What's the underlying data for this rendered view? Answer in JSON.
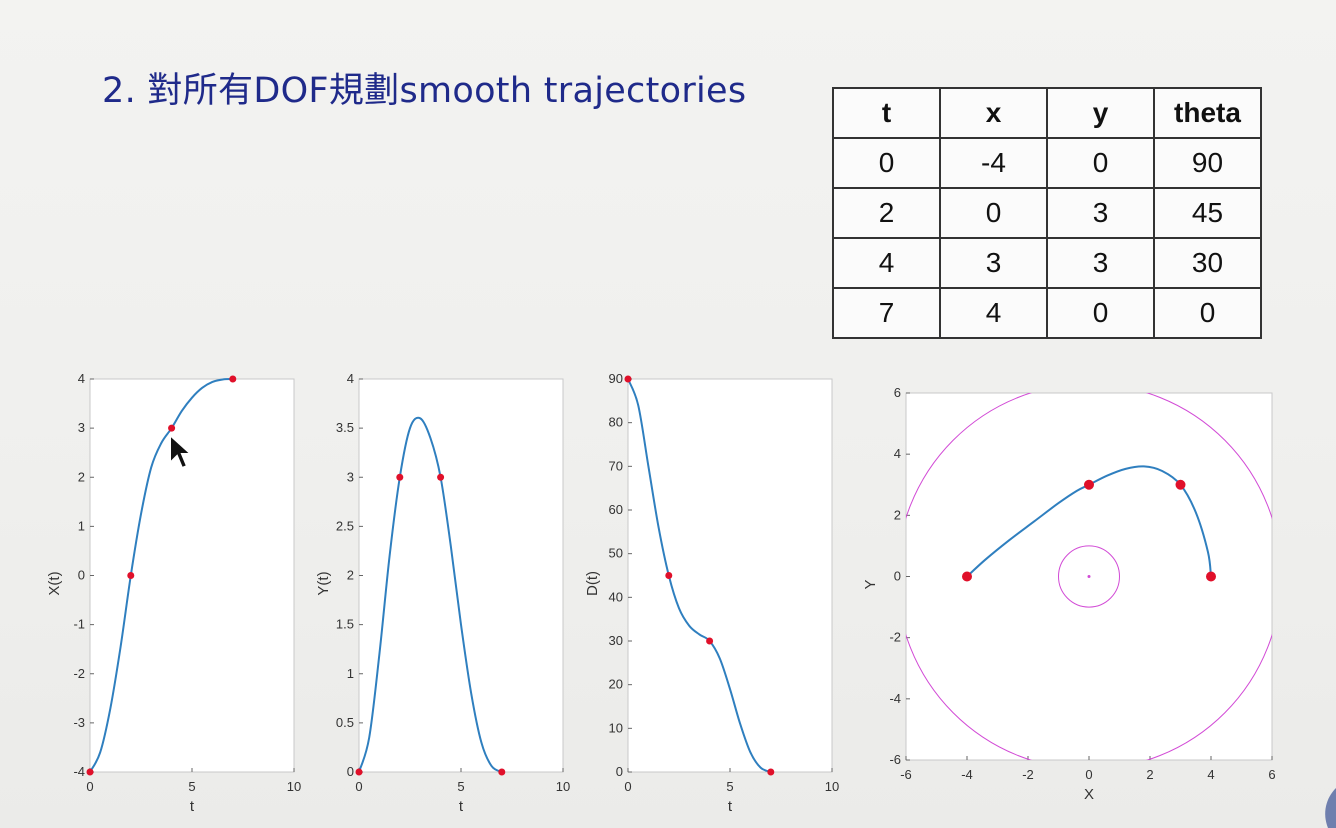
{
  "slide": {
    "title": "2. 對所有DOF規劃smooth trajectories"
  },
  "table": {
    "headers": [
      "t",
      "x",
      "y",
      "theta"
    ],
    "rows": [
      [
        "0",
        "-4",
        "0",
        "90"
      ],
      [
        "2",
        "0",
        "3",
        "45"
      ],
      [
        "4",
        "3",
        "3",
        "30"
      ],
      [
        "7",
        "4",
        "0",
        "0"
      ]
    ]
  },
  "colors": {
    "curve": "#2f7fbf",
    "marker": "#e0102a",
    "circle": "#d24bd6",
    "title": "#1f2a8a"
  },
  "icons": {
    "cursor": "mouse-pointer-icon"
  },
  "chart_data": [
    {
      "type": "line",
      "xlabel": "t",
      "ylabel": "X(t)",
      "xlim": [
        0,
        10
      ],
      "ylim": [
        -4,
        4
      ],
      "xticks": [
        0,
        5,
        10
      ],
      "yticks": [
        -4,
        -3,
        -2,
        -1,
        0,
        1,
        2,
        3,
        4
      ],
      "grid": false,
      "curve": {
        "x": [
          0,
          0.5,
          1,
          1.5,
          2,
          2.5,
          3,
          3.5,
          4,
          4.5,
          5,
          5.5,
          6,
          6.5,
          7
        ],
        "y": [
          -4,
          -3.6,
          -2.7,
          -1.45,
          0,
          1.25,
          2.2,
          2.7,
          3,
          3.35,
          3.62,
          3.82,
          3.94,
          3.99,
          4
        ]
      },
      "points": {
        "x": [
          0,
          2,
          4,
          7
        ],
        "y": [
          -4,
          0,
          3,
          4
        ]
      }
    },
    {
      "type": "line",
      "xlabel": "t",
      "ylabel": "Y(t)",
      "xlim": [
        0,
        10
      ],
      "ylim": [
        0,
        4
      ],
      "xticks": [
        0,
        5,
        10
      ],
      "yticks": [
        0,
        0.5,
        1,
        1.5,
        2,
        2.5,
        3,
        3.5,
        4
      ],
      "grid": false,
      "curve": {
        "x": [
          0,
          0.5,
          1,
          1.5,
          2,
          2.5,
          3,
          3.5,
          4,
          4.5,
          5,
          5.5,
          6,
          6.5,
          7
        ],
        "y": [
          0,
          0.35,
          1.2,
          2.2,
          3,
          3.5,
          3.6,
          3.4,
          3,
          2.3,
          1.5,
          0.8,
          0.3,
          0.06,
          0
        ]
      },
      "points": {
        "x": [
          0,
          2,
          4,
          7
        ],
        "y": [
          0,
          3,
          3,
          0
        ]
      }
    },
    {
      "type": "line",
      "xlabel": "t",
      "ylabel": "D(t)",
      "xlim": [
        0,
        10
      ],
      "ylim": [
        0,
        90
      ],
      "xticks": [
        0,
        5,
        10
      ],
      "yticks": [
        0,
        10,
        20,
        30,
        40,
        50,
        60,
        70,
        80,
        90
      ],
      "grid": false,
      "curve": {
        "x": [
          0,
          0.5,
          1,
          1.5,
          2,
          2.5,
          3,
          3.5,
          4,
          4.5,
          5,
          5.5,
          6,
          6.5,
          7
        ],
        "y": [
          90,
          84,
          70,
          56,
          45,
          37.5,
          33.5,
          31.5,
          30,
          26,
          19,
          11,
          4.5,
          1,
          0
        ]
      },
      "points": {
        "x": [
          0,
          2,
          4,
          7
        ],
        "y": [
          90,
          45,
          30,
          0
        ]
      }
    },
    {
      "type": "line",
      "xlabel": "X",
      "ylabel": "Y",
      "xlim": [
        -6,
        6
      ],
      "ylim": [
        -6,
        6
      ],
      "xticks": [
        -6,
        -4,
        -2,
        0,
        2,
        4,
        6
      ],
      "yticks": [
        -6,
        -4,
        -2,
        0,
        2,
        4,
        6
      ],
      "grid": false,
      "curve": {
        "x": [
          -4,
          -3.4,
          -2.6,
          -1.8,
          -1,
          -0.4,
          0,
          0.6,
          1.2,
          1.8,
          2.4,
          3,
          3.5,
          3.9,
          4
        ],
        "y": [
          0,
          0.55,
          1.2,
          1.8,
          2.4,
          2.8,
          3,
          3.3,
          3.52,
          3.6,
          3.45,
          3,
          2.1,
          0.8,
          0
        ]
      },
      "points": {
        "x": [
          -4,
          0,
          3,
          4
        ],
        "y": [
          0,
          3,
          3,
          0
        ]
      },
      "circles": [
        {
          "cx": 0,
          "cy": 0,
          "r": 1
        },
        {
          "cx": 0,
          "cy": 0,
          "r": 6.3
        }
      ]
    }
  ]
}
